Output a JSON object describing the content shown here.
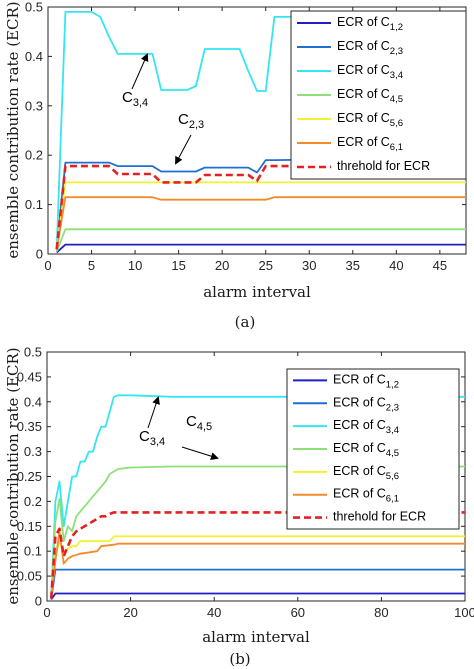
{
  "chart_data": [
    {
      "type": "line",
      "caption": "(a)",
      "xlabel": "alarm interval",
      "ylabel": "ensemble contribution rate (ECR)",
      "xlim": [
        0,
        48
      ],
      "ylim": [
        0,
        0.5
      ],
      "xticks": [
        0,
        5,
        10,
        15,
        20,
        25,
        30,
        35,
        40,
        45
      ],
      "yticks": [
        0,
        0.1,
        0.2,
        0.3,
        0.4,
        0.5
      ],
      "grid": false,
      "legend_position": "top-right",
      "series": [
        {
          "name": "ECR of C1,2",
          "base": "ECR of C",
          "sub": "1,2",
          "color": "#1f1fbf",
          "style": "solid",
          "x": [
            1,
            2,
            48
          ],
          "y": [
            0.003,
            0.019,
            0.019
          ]
        },
        {
          "name": "ECR of C2,3",
          "base": "ECR of C",
          "sub": "2,3",
          "color": "#1f6fd0",
          "style": "solid",
          "x": [
            1,
            2,
            7,
            8,
            12,
            13,
            17,
            18,
            23,
            24,
            25,
            26,
            47,
            48
          ],
          "y": [
            0.01,
            0.185,
            0.185,
            0.178,
            0.178,
            0.167,
            0.167,
            0.175,
            0.175,
            0.165,
            0.19,
            0.19,
            0.195,
            0.195
          ]
        },
        {
          "name": "ECR of C3,4",
          "base": "ECR of C",
          "sub": "3,4",
          "color": "#33e6f2",
          "style": "solid",
          "x": [
            1,
            2,
            5,
            6,
            7,
            8,
            9,
            12,
            13,
            15,
            16,
            17,
            18,
            22,
            23,
            24,
            25,
            26,
            32,
            33,
            34,
            35,
            48
          ],
          "y": [
            0.01,
            0.49,
            0.49,
            0.48,
            0.44,
            0.405,
            0.405,
            0.405,
            0.332,
            0.332,
            0.332,
            0.34,
            0.415,
            0.415,
            0.37,
            0.33,
            0.33,
            0.48,
            0.48,
            0.48,
            0.475,
            0.48,
            0.48
          ]
        },
        {
          "name": "ECR of C4,5",
          "base": "ECR of C",
          "sub": "4,5",
          "color": "#8fe07a",
          "style": "solid",
          "x": [
            1,
            2,
            48
          ],
          "y": [
            0.005,
            0.05,
            0.05
          ]
        },
        {
          "name": "ECR of C5,6",
          "base": "ECR of C",
          "sub": "5,6",
          "color": "#f2f233",
          "style": "solid",
          "x": [
            1,
            2,
            48
          ],
          "y": [
            0.01,
            0.145,
            0.145
          ]
        },
        {
          "name": "ECR of C6,1",
          "base": "ECR of C",
          "sub": "6,1",
          "color": "#f28b2a",
          "style": "solid",
          "x": [
            1,
            2,
            12,
            13,
            25,
            26,
            48
          ],
          "y": [
            0.008,
            0.115,
            0.115,
            0.11,
            0.11,
            0.115,
            0.115
          ]
        },
        {
          "name": "threhold for ECR",
          "base": "threhold for ECR",
          "sub": "",
          "color": "#e62020",
          "style": "dashed",
          "x": [
            1,
            2,
            7,
            8,
            12,
            13,
            17,
            18,
            23,
            24,
            25,
            26,
            48
          ],
          "y": [
            0.01,
            0.178,
            0.178,
            0.162,
            0.162,
            0.145,
            0.145,
            0.16,
            0.16,
            0.148,
            0.178,
            0.178,
            0.178
          ]
        }
      ],
      "annotations": [
        {
          "base": "C",
          "sub": "3,4",
          "x": 12.5,
          "y": 0.4
        },
        {
          "base": "C",
          "sub": "2,3",
          "x": 14.5,
          "y": 0.17
        }
      ]
    },
    {
      "type": "line",
      "caption": "(b)",
      "xlabel": "alarm interval",
      "ylabel": "ensemble contribution rate (ECR)",
      "xlim": [
        0,
        100
      ],
      "ylim": [
        0,
        0.5
      ],
      "xticks": [
        0,
        20,
        40,
        60,
        80,
        100
      ],
      "yticks": [
        0,
        0.05,
        0.1,
        0.15,
        0.2,
        0.25,
        0.3,
        0.35,
        0.4,
        0.45,
        0.5
      ],
      "grid": false,
      "legend_position": "top-right",
      "series": [
        {
          "name": "ECR of C1,2",
          "base": "ECR of C",
          "sub": "1,2",
          "color": "#1f1fbf",
          "style": "solid",
          "x": [
            1,
            2,
            100
          ],
          "y": [
            0.003,
            0.015,
            0.015
          ]
        },
        {
          "name": "ECR of C2,3",
          "base": "ECR of C",
          "sub": "2,3",
          "color": "#1f6fd0",
          "style": "solid",
          "x": [
            1,
            2,
            100
          ],
          "y": [
            0.003,
            0.063,
            0.063
          ]
        },
        {
          "name": "ECR of C3,4",
          "base": "ECR of C",
          "sub": "3,4",
          "color": "#33e6f2",
          "style": "solid",
          "x": [
            1,
            2,
            3,
            4,
            5,
            6,
            7,
            8,
            9,
            10,
            11,
            12,
            13,
            14,
            15,
            16,
            17,
            20,
            30,
            40,
            60,
            80,
            100
          ],
          "y": [
            0.005,
            0.2,
            0.24,
            0.15,
            0.2,
            0.25,
            0.25,
            0.28,
            0.28,
            0.3,
            0.3,
            0.33,
            0.35,
            0.35,
            0.38,
            0.41,
            0.413,
            0.413,
            0.41,
            0.41,
            0.41,
            0.41,
            0.41
          ]
        },
        {
          "name": "ECR of C4,5",
          "base": "ECR of C",
          "sub": "4,5",
          "color": "#8fe07a",
          "style": "solid",
          "x": [
            1,
            2,
            3,
            4,
            5,
            6,
            7,
            8,
            9,
            10,
            11,
            12,
            13,
            14,
            15,
            16,
            17,
            20,
            30,
            40,
            100
          ],
          "y": [
            0.005,
            0.16,
            0.205,
            0.12,
            0.15,
            0.14,
            0.17,
            0.18,
            0.19,
            0.2,
            0.21,
            0.22,
            0.23,
            0.24,
            0.255,
            0.26,
            0.265,
            0.268,
            0.27,
            0.27,
            0.27
          ]
        },
        {
          "name": "ECR of C5,6",
          "base": "ECR of C",
          "sub": "5,6",
          "color": "#f2f233",
          "style": "solid",
          "x": [
            1,
            2,
            3,
            4,
            5,
            6,
            7,
            8,
            10,
            14,
            15,
            16,
            100
          ],
          "y": [
            0.005,
            0.09,
            0.12,
            0.1,
            0.105,
            0.11,
            0.11,
            0.12,
            0.12,
            0.12,
            0.12,
            0.13,
            0.13
          ]
        },
        {
          "name": "ECR of C6,1",
          "base": "ECR of C",
          "sub": "6,1",
          "color": "#f28b2a",
          "style": "solid",
          "x": [
            1,
            2,
            3,
            4,
            5,
            6,
            8,
            12,
            13,
            16,
            17,
            100
          ],
          "y": [
            0.005,
            0.08,
            0.14,
            0.075,
            0.085,
            0.09,
            0.095,
            0.1,
            0.11,
            0.113,
            0.115,
            0.115
          ]
        },
        {
          "name": "threhold for ECR",
          "base": "threhold for ECR",
          "sub": "",
          "color": "#e62020",
          "style": "dashed",
          "x": [
            1,
            2,
            3,
            4,
            5,
            6,
            7,
            8,
            9,
            10,
            11,
            12,
            13,
            14,
            15,
            16,
            17,
            100
          ],
          "y": [
            0.005,
            0.13,
            0.145,
            0.09,
            0.11,
            0.13,
            0.14,
            0.145,
            0.15,
            0.155,
            0.16,
            0.165,
            0.17,
            0.17,
            0.175,
            0.178,
            0.178,
            0.178
          ]
        }
      ],
      "annotations": [
        {
          "base": "C",
          "sub": "3,4",
          "x": 26,
          "y": 0.405
        },
        {
          "base": "C",
          "sub": "4,5",
          "x": 35,
          "y": 0.27
        }
      ]
    }
  ]
}
